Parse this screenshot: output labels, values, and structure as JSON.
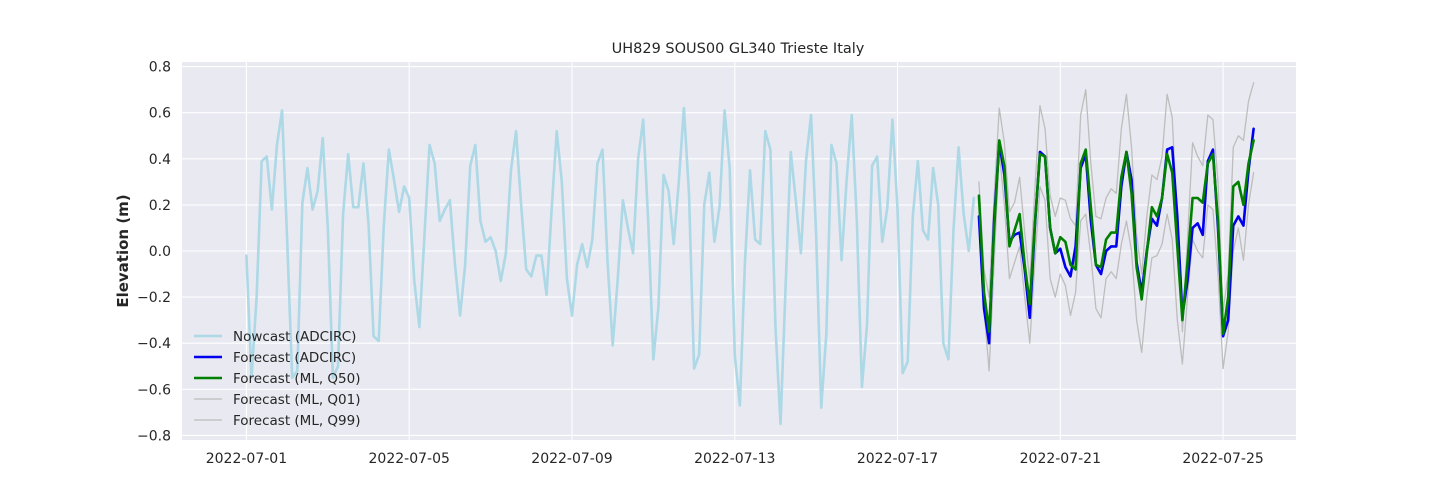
{
  "chart_data": {
    "type": "line",
    "title": "UH829 SOUS00 GL340 Trieste Italy",
    "xlabel": "",
    "ylabel": "Elevation (m)",
    "x_axis_type": "date",
    "xlim": [
      "2022-06-29T10:00",
      "2022-07-26T19:00"
    ],
    "ylim": [
      -0.82,
      0.82
    ],
    "x_ticks": [
      "2022-07-01",
      "2022-07-05",
      "2022-07-09",
      "2022-07-13",
      "2022-07-17",
      "2022-07-21",
      "2022-07-25"
    ],
    "y_ticks": [
      -0.8,
      -0.6,
      -0.4,
      -0.2,
      0.0,
      0.2,
      0.4,
      0.6,
      0.8
    ],
    "y_tick_labels": [
      "−0.8",
      "−0.6",
      "−0.4",
      "−0.2",
      "0.0",
      "0.2",
      "0.4",
      "0.6",
      "0.8"
    ],
    "grid": true,
    "background": "#e9e9f1",
    "legend_position": "lower-left",
    "series": [
      {
        "name": "Nowcast (ADCIRC)",
        "color": "#add8e6",
        "width": 2.6,
        "start": "2022-07-01T00:00",
        "step_hours": 3,
        "values": [
          -0.02,
          -0.55,
          -0.2,
          0.39,
          0.41,
          0.18,
          0.46,
          0.61,
          0.05,
          -0.55,
          -0.52,
          0.21,
          0.36,
          0.18,
          0.26,
          0.49,
          0.1,
          -0.55,
          -0.5,
          0.16,
          0.42,
          0.19,
          0.19,
          0.38,
          0.12,
          -0.37,
          -0.39,
          0.11,
          0.44,
          0.31,
          0.17,
          0.28,
          0.23,
          -0.13,
          -0.33,
          0.07,
          0.46,
          0.38,
          0.13,
          0.18,
          0.22,
          -0.06,
          -0.28,
          -0.06,
          0.37,
          0.46,
          0.13,
          0.04,
          0.06,
          0.0,
          -0.13,
          -0.01,
          0.35,
          0.52,
          0.2,
          -0.08,
          -0.11,
          -0.02,
          -0.02,
          -0.19,
          0.18,
          0.52,
          0.3,
          -0.12,
          -0.28,
          -0.06,
          0.03,
          -0.07,
          0.05,
          0.38,
          0.44,
          -0.05,
          -0.41,
          -0.12,
          0.22,
          0.1,
          -0.01,
          0.4,
          0.57,
          0.12,
          -0.47,
          -0.24,
          0.33,
          0.26,
          0.03,
          0.3,
          0.62,
          0.25,
          -0.51,
          -0.45,
          0.2,
          0.34,
          0.04,
          0.19,
          0.61,
          0.36,
          -0.45,
          -0.67,
          -0.05,
          0.35,
          0.05,
          0.03,
          0.52,
          0.44,
          -0.33,
          -0.75,
          -0.15,
          0.43,
          0.22,
          -0.01,
          0.39,
          0.59,
          0.07,
          -0.68,
          -0.36,
          0.46,
          0.38,
          -0.04,
          0.31,
          0.59,
          0.13,
          -0.59,
          -0.32,
          0.37,
          0.41,
          0.04,
          0.19,
          0.57,
          0.18,
          -0.53,
          -0.48,
          0.15,
          0.39,
          0.09,
          0.05,
          0.36,
          0.2,
          -0.4,
          -0.47,
          0.09,
          0.45,
          0.16,
          0.0,
          0.23
        ]
      },
      {
        "name": "Forecast (ADCIRC)",
        "color": "#0000ee",
        "width": 2.6,
        "start": "2022-07-19T00:00",
        "step_hours": 3,
        "values": [
          0.15,
          -0.25,
          -0.4,
          0.14,
          0.47,
          0.33,
          0.04,
          0.07,
          0.08,
          -0.08,
          -0.29,
          0.11,
          0.43,
          0.41,
          0.1,
          -0.01,
          0.01,
          -0.07,
          -0.11,
          0.02,
          0.36,
          0.42,
          0.13,
          -0.06,
          -0.1,
          0.0,
          0.02,
          0.02,
          0.28,
          0.43,
          0.31,
          -0.05,
          -0.18,
          0.0,
          0.14,
          0.11,
          0.23,
          0.44,
          0.45,
          0.15,
          -0.28,
          -0.13,
          0.1,
          0.12,
          0.07,
          0.39,
          0.44,
          0.1,
          -0.37,
          -0.3,
          0.11,
          0.15,
          0.11,
          0.35,
          0.53
        ]
      },
      {
        "name": "Forecast (ML, Q50)",
        "color": "#008000",
        "width": 2.6,
        "start": "2022-07-19T00:00",
        "step_hours": 3,
        "values": [
          0.24,
          -0.18,
          -0.35,
          0.1,
          0.48,
          0.37,
          0.02,
          0.09,
          0.16,
          -0.06,
          -0.23,
          0.12,
          0.42,
          0.41,
          0.1,
          -0.01,
          0.06,
          0.04,
          -0.06,
          -0.08,
          0.38,
          0.44,
          0.19,
          -0.06,
          -0.07,
          0.05,
          0.08,
          0.08,
          0.32,
          0.43,
          0.25,
          -0.07,
          -0.21,
          -0.01,
          0.19,
          0.15,
          0.23,
          0.42,
          0.34,
          0.02,
          -0.3,
          -0.05,
          0.23,
          0.23,
          0.21,
          0.38,
          0.42,
          0.13,
          -0.36,
          -0.2,
          0.28,
          0.3,
          0.2,
          0.38,
          0.48
        ]
      },
      {
        "name": "Forecast (ML, Q01)",
        "color": "#bdbdbd",
        "width": 1.3,
        "start": "2022-07-19T00:00",
        "step_hours": 3,
        "values": [
          0.13,
          -0.25,
          -0.52,
          -0.05,
          0.43,
          0.2,
          -0.12,
          -0.05,
          0.02,
          -0.2,
          -0.4,
          -0.05,
          0.28,
          0.22,
          -0.12,
          -0.2,
          -0.1,
          -0.15,
          -0.28,
          -0.18,
          0.13,
          0.16,
          -0.02,
          -0.25,
          -0.29,
          -0.12,
          -0.09,
          -0.12,
          0.03,
          0.13,
          0.0,
          -0.3,
          -0.44,
          -0.2,
          -0.03,
          -0.02,
          0.03,
          0.16,
          0.05,
          -0.3,
          -0.49,
          -0.2,
          0.05,
          0.0,
          -0.03,
          0.2,
          0.18,
          -0.1,
          -0.51,
          -0.35,
          0.0,
          0.1,
          -0.04,
          0.2,
          0.34
        ]
      },
      {
        "name": "Forecast (ML, Q99)",
        "color": "#bdbdbd",
        "width": 1.3,
        "start": "2022-07-19T00:00",
        "step_hours": 3,
        "values": [
          0.3,
          -0.08,
          -0.2,
          0.24,
          0.62,
          0.47,
          0.17,
          0.21,
          0.32,
          0.08,
          -0.13,
          0.27,
          0.63,
          0.53,
          0.24,
          0.15,
          0.23,
          0.22,
          0.14,
          0.11,
          0.59,
          0.7,
          0.38,
          0.15,
          0.14,
          0.23,
          0.27,
          0.25,
          0.53,
          0.68,
          0.45,
          0.07,
          -0.1,
          0.15,
          0.33,
          0.31,
          0.41,
          0.68,
          0.58,
          0.12,
          -0.35,
          0.05,
          0.47,
          0.41,
          0.37,
          0.59,
          0.57,
          0.3,
          -0.26,
          -0.1,
          0.45,
          0.5,
          0.48,
          0.65,
          0.73
        ]
      }
    ]
  }
}
